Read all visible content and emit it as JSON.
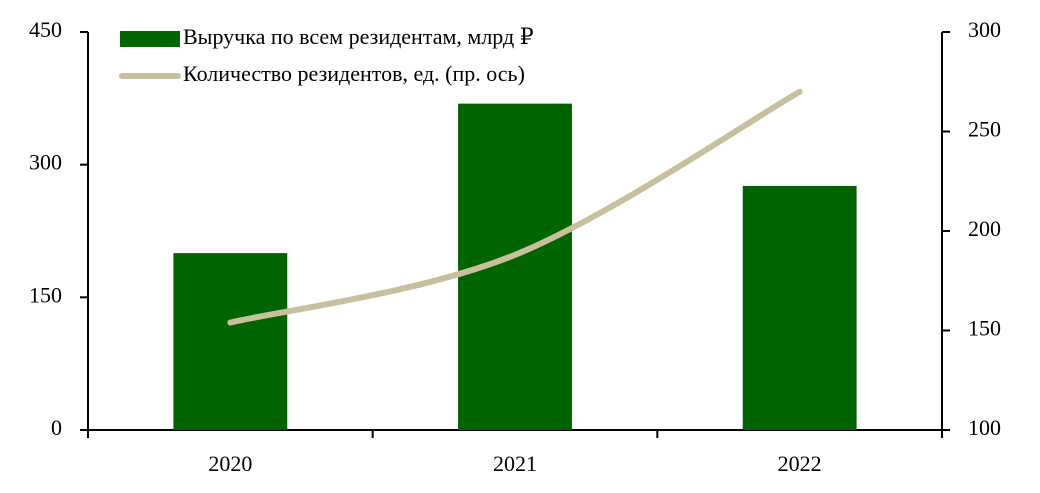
{
  "chart_data": {
    "type": "bar-line",
    "categories": [
      "2020",
      "2021",
      "2022"
    ],
    "series": [
      {
        "name": "Выручка по всем резидентам, млрд ₽",
        "type": "bar",
        "color": "#006400",
        "values": [
          200,
          369,
          276
        ]
      },
      {
        "name": "Количество резидентов, ед. (пр. ось)",
        "type": "line",
        "color": "#c8c09c",
        "values": [
          154,
          188,
          270
        ],
        "axis": "y2"
      }
    ],
    "ylim": [
      0,
      450
    ],
    "yticks": [
      0,
      150,
      300,
      450
    ],
    "y2lim": [
      100,
      300
    ],
    "y2ticks": [
      100,
      150,
      200,
      250,
      300
    ],
    "legend": "top-left"
  }
}
